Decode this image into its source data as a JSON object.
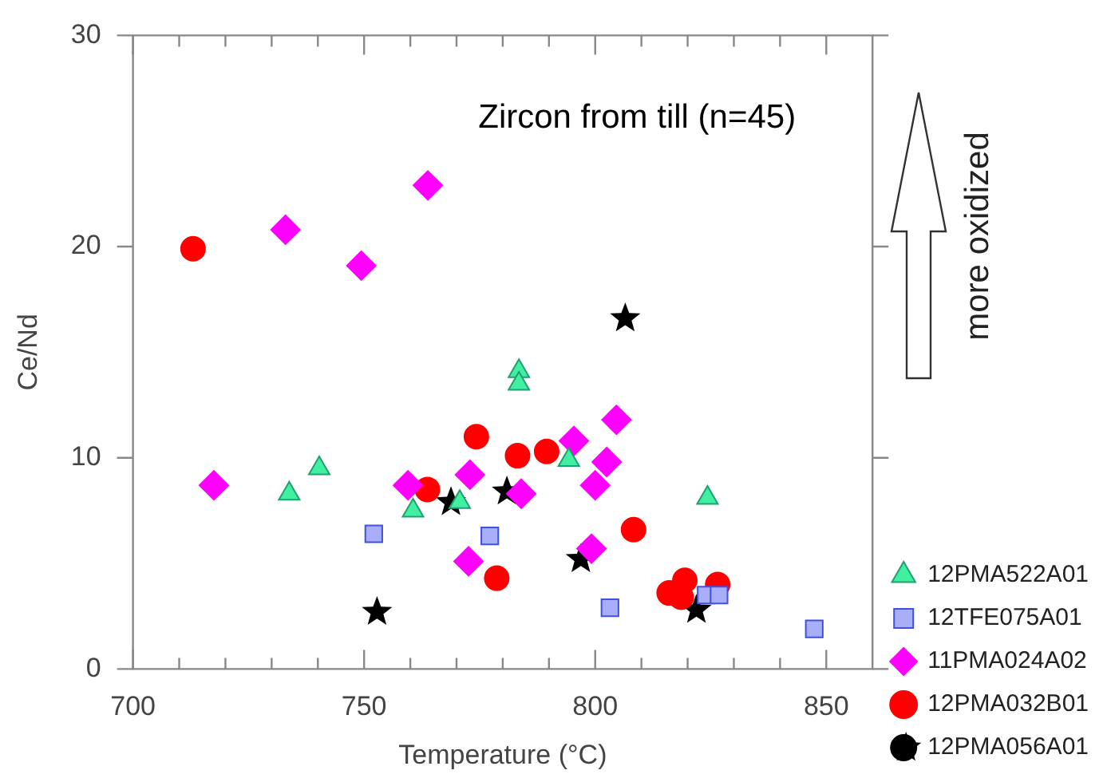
{
  "chart_data": {
    "type": "scatter",
    "xlabel": "Temperature (°C)",
    "ylabel": "Ce/Nd",
    "xlim": [
      700,
      860
    ],
    "xticks": [
      700,
      {
        "value": 710,
        "label": null
      },
      {
        "value": 720,
        "label": null
      },
      {
        "value": 730,
        "label": null
      },
      {
        "value": 740,
        "label": null
      },
      750,
      {
        "value": 760,
        "label": null
      },
      {
        "value": 770,
        "label": null
      },
      {
        "value": 780,
        "label": null
      },
      {
        "value": 790,
        "label": null
      },
      800,
      {
        "value": 810,
        "label": null
      },
      {
        "value": 820,
        "label": null
      },
      {
        "value": 830,
        "label": null
      },
      {
        "value": 840,
        "label": null
      },
      850
    ],
    "ylim": [
      0,
      30
    ],
    "yticks": [
      0,
      10,
      20,
      30
    ],
    "grid": false,
    "legend": "bottom right",
    "annotations": [
      "Zircon from till (n=45)",
      "more oxidized"
    ],
    "series": [
      {
        "name": "12PMA522A01",
        "color": "#40f0a0",
        "marker": "triangle",
        "x": [
          733.8,
          740.3,
          760.6,
          770.7,
          783.5,
          783.5,
          794.3,
          824.3
        ],
        "values": [
          8.3,
          9.5,
          7.5,
          7.9,
          14.1,
          13.5,
          9.9,
          8.1
        ]
      },
      {
        "name": "12TFE075A01",
        "color": "#a8aef8",
        "marker": "square",
        "x": [
          752.1,
          777.2,
          803.2,
          824,
          826.8,
          847.4
        ],
        "values": [
          6.4,
          6.3,
          2.9,
          3.5,
          3.5,
          1.9
        ]
      },
      {
        "name": "11PMA024A02",
        "color": "#ff00ff",
        "marker": "diamond",
        "x": [
          717.5,
          759.5,
          772.9,
          772.6,
          784,
          795.4,
          800,
          802.5,
          804.6,
          799.2,
          733,
          749.4,
          763.8
        ],
        "values": [
          8.7,
          8.7,
          9.2,
          5.1,
          8.3,
          10.8,
          8.7,
          9.8,
          11.8,
          5.7,
          20.8,
          19.1,
          22.9
        ]
      },
      {
        "name": "12PMA032B01",
        "color": "#ff0000",
        "marker": "circle",
        "x": [
          713,
          763.7,
          774.3,
          783.2,
          789.5,
          778.7,
          808.3,
          816,
          818.6,
          819.4,
          826.5
        ],
        "values": [
          19.9,
          8.5,
          11.0,
          10.1,
          10.3,
          4.3,
          6.6,
          3.6,
          3.4,
          4.2,
          4.0
        ]
      },
      {
        "name": "12PMA056A01",
        "color": "#000000",
        "marker": "star",
        "x": [
          752.8,
          768.8,
          780.9,
          796.9,
          821.9,
          806.5
        ],
        "values": [
          2.7,
          7.9,
          8.4,
          5.2,
          2.8,
          16.6
        ]
      }
    ]
  }
}
